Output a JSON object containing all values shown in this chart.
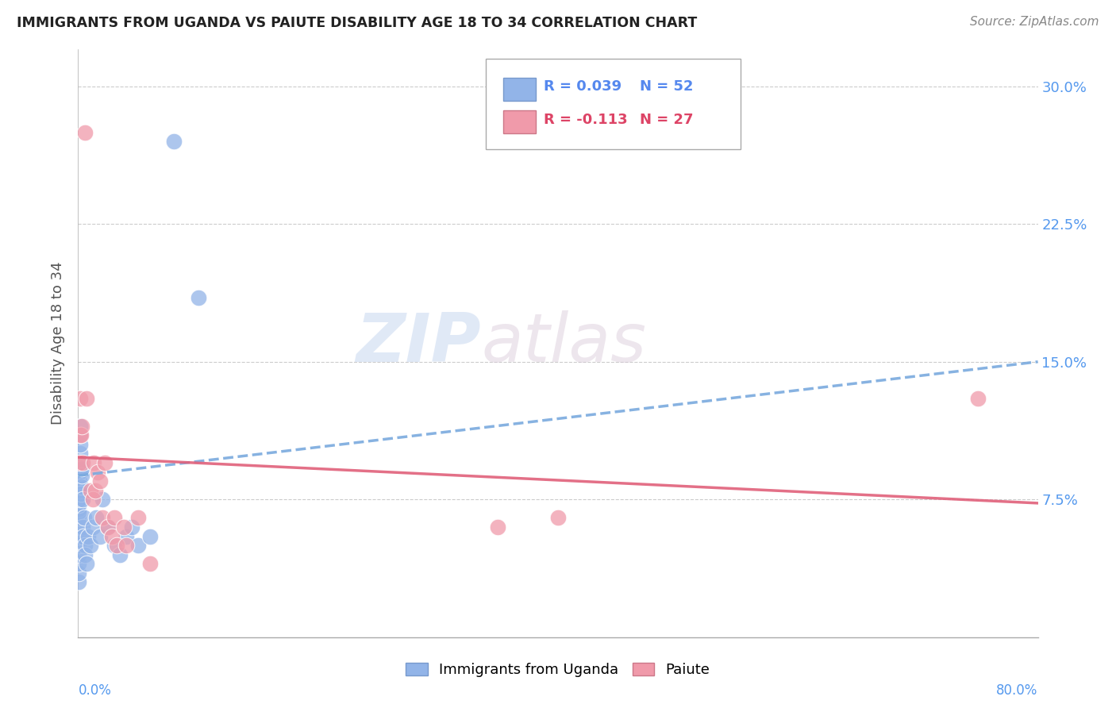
{
  "title": "IMMIGRANTS FROM UGANDA VS PAIUTE DISABILITY AGE 18 TO 34 CORRELATION CHART",
  "source": "Source: ZipAtlas.com",
  "ylabel": "Disability Age 18 to 34",
  "ytick_values": [
    0.075,
    0.15,
    0.225,
    0.3
  ],
  "ytick_labels": [
    "7.5%",
    "15.0%",
    "22.5%",
    "30.0%"
  ],
  "xlim": [
    0.0,
    0.8
  ],
  "ylim": [
    0.0,
    0.32
  ],
  "legend_label1": "Immigrants from Uganda",
  "legend_label2": "Paiute",
  "legend_R1": "R = 0.039",
  "legend_N1": "N = 52",
  "legend_R2": "R = -0.113",
  "legend_N2": "N = 27",
  "color_uganda": "#92b4e8",
  "color_paiute": "#f09aaa",
  "color_uganda_line": "#7aaade",
  "color_paiute_line": "#e0607a",
  "watermark_zip": "ZIP",
  "watermark_atlas": "atlas",
  "uganda_line_start_y": 0.088,
  "uganda_line_end_y": 0.15,
  "paiute_line_start_y": 0.098,
  "paiute_line_end_y": 0.073,
  "uganda_x": [
    0.0005,
    0.0005,
    0.0005,
    0.0005,
    0.0005,
    0.0005,
    0.0005,
    0.0005,
    0.0005,
    0.0005,
    0.0005,
    0.0005,
    0.0005,
    0.0005,
    0.0005,
    0.0005,
    0.001,
    0.001,
    0.001,
    0.001,
    0.001,
    0.0015,
    0.0015,
    0.0015,
    0.002,
    0.002,
    0.0025,
    0.0025,
    0.003,
    0.003,
    0.0035,
    0.004,
    0.0045,
    0.005,
    0.0055,
    0.006,
    0.007,
    0.008,
    0.01,
    0.012,
    0.015,
    0.018,
    0.02,
    0.025,
    0.03,
    0.035,
    0.04,
    0.045,
    0.05,
    0.06,
    0.08,
    0.1
  ],
  "uganda_y": [
    0.03,
    0.035,
    0.04,
    0.045,
    0.05,
    0.055,
    0.06,
    0.065,
    0.07,
    0.075,
    0.08,
    0.085,
    0.09,
    0.07,
    0.068,
    0.072,
    0.075,
    0.08,
    0.085,
    0.09,
    0.095,
    0.095,
    0.1,
    0.105,
    0.11,
    0.115,
    0.078,
    0.082,
    0.088,
    0.092,
    0.075,
    0.06,
    0.055,
    0.065,
    0.05,
    0.045,
    0.04,
    0.055,
    0.05,
    0.06,
    0.065,
    0.055,
    0.075,
    0.06,
    0.05,
    0.045,
    0.055,
    0.06,
    0.05,
    0.055,
    0.27,
    0.185
  ],
  "paiute_x": [
    0.001,
    0.0015,
    0.002,
    0.0025,
    0.003,
    0.0035,
    0.006,
    0.007,
    0.01,
    0.012,
    0.013,
    0.014,
    0.016,
    0.018,
    0.02,
    0.022,
    0.025,
    0.028,
    0.03,
    0.032,
    0.038,
    0.04,
    0.05,
    0.06,
    0.35,
    0.4,
    0.75
  ],
  "paiute_y": [
    0.095,
    0.13,
    0.11,
    0.11,
    0.115,
    0.095,
    0.275,
    0.13,
    0.08,
    0.075,
    0.095,
    0.08,
    0.09,
    0.085,
    0.065,
    0.095,
    0.06,
    0.055,
    0.065,
    0.05,
    0.06,
    0.05,
    0.065,
    0.04,
    0.06,
    0.065,
    0.13
  ]
}
